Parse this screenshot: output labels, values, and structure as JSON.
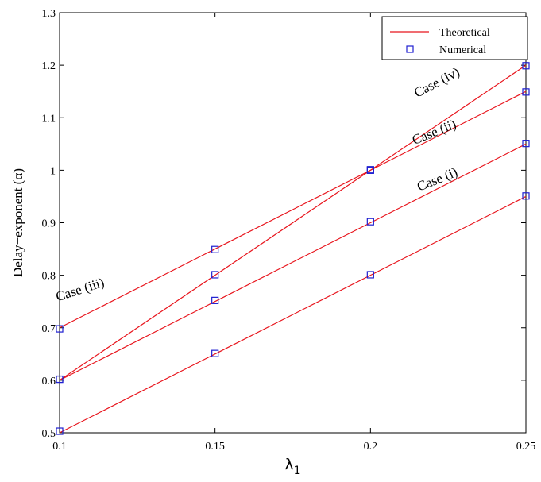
{
  "chart_data": {
    "type": "line",
    "xlabel": "λ",
    "xlabel_subscript": "1",
    "ylabel": "Delay−exponent (α)",
    "xlim": [
      0.1,
      0.25
    ],
    "ylim": [
      0.5,
      1.3
    ],
    "x_ticks": [
      0.1,
      0.15,
      0.2,
      0.25
    ],
    "x_tick_labels": [
      "0.1",
      "0.15",
      "0.2",
      "0.25"
    ],
    "y_ticks": [
      0.5,
      0.6,
      0.7,
      0.8,
      0.9,
      1.0,
      1.1,
      1.2,
      1.3
    ],
    "y_tick_labels": [
      "0.5",
      "0.6",
      "0.7",
      "0.8",
      "0.9",
      "1",
      "1.1",
      "1.2",
      "1.3"
    ],
    "grid": false,
    "legend": {
      "placement": "top-right",
      "entries": [
        {
          "label": "Theoretical",
          "style": "line",
          "color": "#e8141c"
        },
        {
          "label": "Numerical",
          "style": "square-marker",
          "color": "#1f1fd0"
        }
      ]
    },
    "x": [
      0.1,
      0.15,
      0.2,
      0.25
    ],
    "series": [
      {
        "theoretical": [
          0.5,
          0.65,
          0.8,
          0.95
        ],
        "numerical": [
          0.503,
          0.651,
          0.801,
          0.951
        ]
      },
      {
        "theoretical": [
          0.6,
          0.75,
          0.9,
          1.05
        ],
        "numerical": [
          0.602,
          0.752,
          0.902,
          1.051
        ]
      },
      {
        "theoretical": [
          0.7,
          0.85,
          1.0,
          1.15
        ],
        "numerical": [
          0.698,
          0.849,
          1.001,
          1.149
        ]
      },
      {
        "theoretical": [
          0.6,
          0.8,
          1.0,
          1.2
        ],
        "numerical": [
          0.602,
          0.801,
          1.0,
          1.199
        ]
      }
    ],
    "annotations": [
      {
        "text": "Case (i)",
        "x": 0.222,
        "y": 0.975,
        "rotation_deg": -22
      },
      {
        "text": "Case (ii)",
        "x": 0.221,
        "y": 1.065,
        "rotation_deg": -22
      },
      {
        "text": "Case (iii)",
        "x": 0.107,
        "y": 0.765,
        "rotation_deg": -18
      },
      {
        "text": "Case (iv)",
        "x": 0.222,
        "y": 1.16,
        "rotation_deg": -28
      }
    ]
  }
}
